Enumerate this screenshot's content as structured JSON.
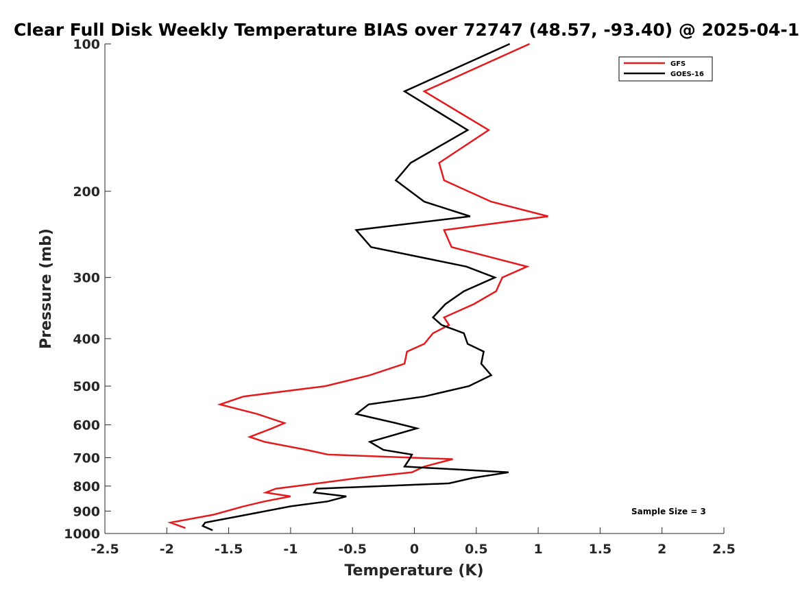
{
  "chart_data": {
    "type": "line",
    "title": "Clear Full Disk Weekly Temperature BIAS over 72747 (48.57, -93.40) @ 2025-04-1",
    "xlabel": "Temperature (K)",
    "ylabel": "Pressure (mb)",
    "xlim": [
      -2.5,
      2.5
    ],
    "ylim": [
      1000,
      100
    ],
    "y_scale": "log",
    "x_ticks": [
      -2.5,
      -2,
      -1.5,
      -1,
      -0.5,
      0,
      0.5,
      1,
      1.5,
      2,
      2.5
    ],
    "x_tick_labels": [
      "-2.5",
      "-2",
      "-1.5",
      "-1",
      "-0.5",
      "0",
      "0.5",
      "1",
      "1.5",
      "2",
      "2.5"
    ],
    "y_ticks": [
      100,
      200,
      300,
      400,
      500,
      600,
      700,
      800,
      900,
      1000
    ],
    "y_tick_labels": [
      "100",
      "200",
      "300",
      "400",
      "500",
      "600",
      "700",
      "800",
      "900",
      "1000"
    ],
    "grid": false,
    "legend_position": "top-right",
    "annotation": "Sample Size = 3",
    "series": [
      {
        "name": "GFS",
        "color": "#e41a1c",
        "points": [
          [
            0.93,
            100
          ],
          [
            0.08,
            125
          ],
          [
            0.6,
            150
          ],
          [
            0.2,
            175
          ],
          [
            0.24,
            190
          ],
          [
            0.62,
            210
          ],
          [
            1.08,
            225
          ],
          [
            0.24,
            240
          ],
          [
            0.3,
            260
          ],
          [
            0.91,
            285
          ],
          [
            0.71,
            300
          ],
          [
            0.66,
            320
          ],
          [
            0.48,
            340
          ],
          [
            0.24,
            362
          ],
          [
            0.28,
            375
          ],
          [
            0.15,
            390
          ],
          [
            0.08,
            410
          ],
          [
            -0.06,
            425
          ],
          [
            -0.08,
            450
          ],
          [
            -0.36,
            475
          ],
          [
            -0.72,
            500
          ],
          [
            -1.38,
            525
          ],
          [
            -1.57,
            545
          ],
          [
            -1.27,
            570
          ],
          [
            -1.05,
            595
          ],
          [
            -1.15,
            610
          ],
          [
            -1.33,
            635
          ],
          [
            -1.21,
            650
          ],
          [
            -0.87,
            675
          ],
          [
            -0.7,
            690
          ],
          [
            0.31,
            705
          ],
          [
            0.08,
            730
          ],
          [
            -0.02,
            750
          ],
          [
            -0.45,
            770
          ],
          [
            -0.78,
            790
          ],
          [
            -1.12,
            810
          ],
          [
            -1.2,
            825
          ],
          [
            -1.0,
            840
          ],
          [
            -1.21,
            860
          ],
          [
            -1.38,
            880
          ],
          [
            -1.62,
            915
          ],
          [
            -1.97,
            950
          ],
          [
            -1.85,
            975
          ]
        ]
      },
      {
        "name": "GOES-16",
        "color": "#000000",
        "points": [
          [
            0.77,
            100
          ],
          [
            -0.08,
            125
          ],
          [
            0.43,
            150
          ],
          [
            -0.03,
            175
          ],
          [
            -0.15,
            190
          ],
          [
            0.08,
            210
          ],
          [
            0.45,
            225
          ],
          [
            -0.47,
            240
          ],
          [
            -0.35,
            260
          ],
          [
            0.42,
            285
          ],
          [
            0.65,
            300
          ],
          [
            0.4,
            320
          ],
          [
            0.25,
            340
          ],
          [
            0.15,
            362
          ],
          [
            0.22,
            375
          ],
          [
            0.4,
            390
          ],
          [
            0.43,
            410
          ],
          [
            0.56,
            425
          ],
          [
            0.54,
            450
          ],
          [
            0.62,
            475
          ],
          [
            0.44,
            500
          ],
          [
            0.08,
            525
          ],
          [
            -0.37,
            545
          ],
          [
            -0.47,
            570
          ],
          [
            -0.15,
            595
          ],
          [
            0.02,
            610
          ],
          [
            -0.22,
            635
          ],
          [
            -0.36,
            650
          ],
          [
            -0.25,
            675
          ],
          [
            -0.02,
            690
          ],
          [
            -0.04,
            705
          ],
          [
            -0.08,
            730
          ],
          [
            0.76,
            750
          ],
          [
            0.47,
            770
          ],
          [
            0.28,
            790
          ],
          [
            -0.79,
            810
          ],
          [
            -0.81,
            825
          ],
          [
            -0.55,
            840
          ],
          [
            -0.7,
            860
          ],
          [
            -1.0,
            880
          ],
          [
            -1.35,
            915
          ],
          [
            -1.69,
            950
          ],
          [
            -1.71,
            965
          ],
          [
            -1.63,
            985
          ]
        ]
      }
    ]
  }
}
